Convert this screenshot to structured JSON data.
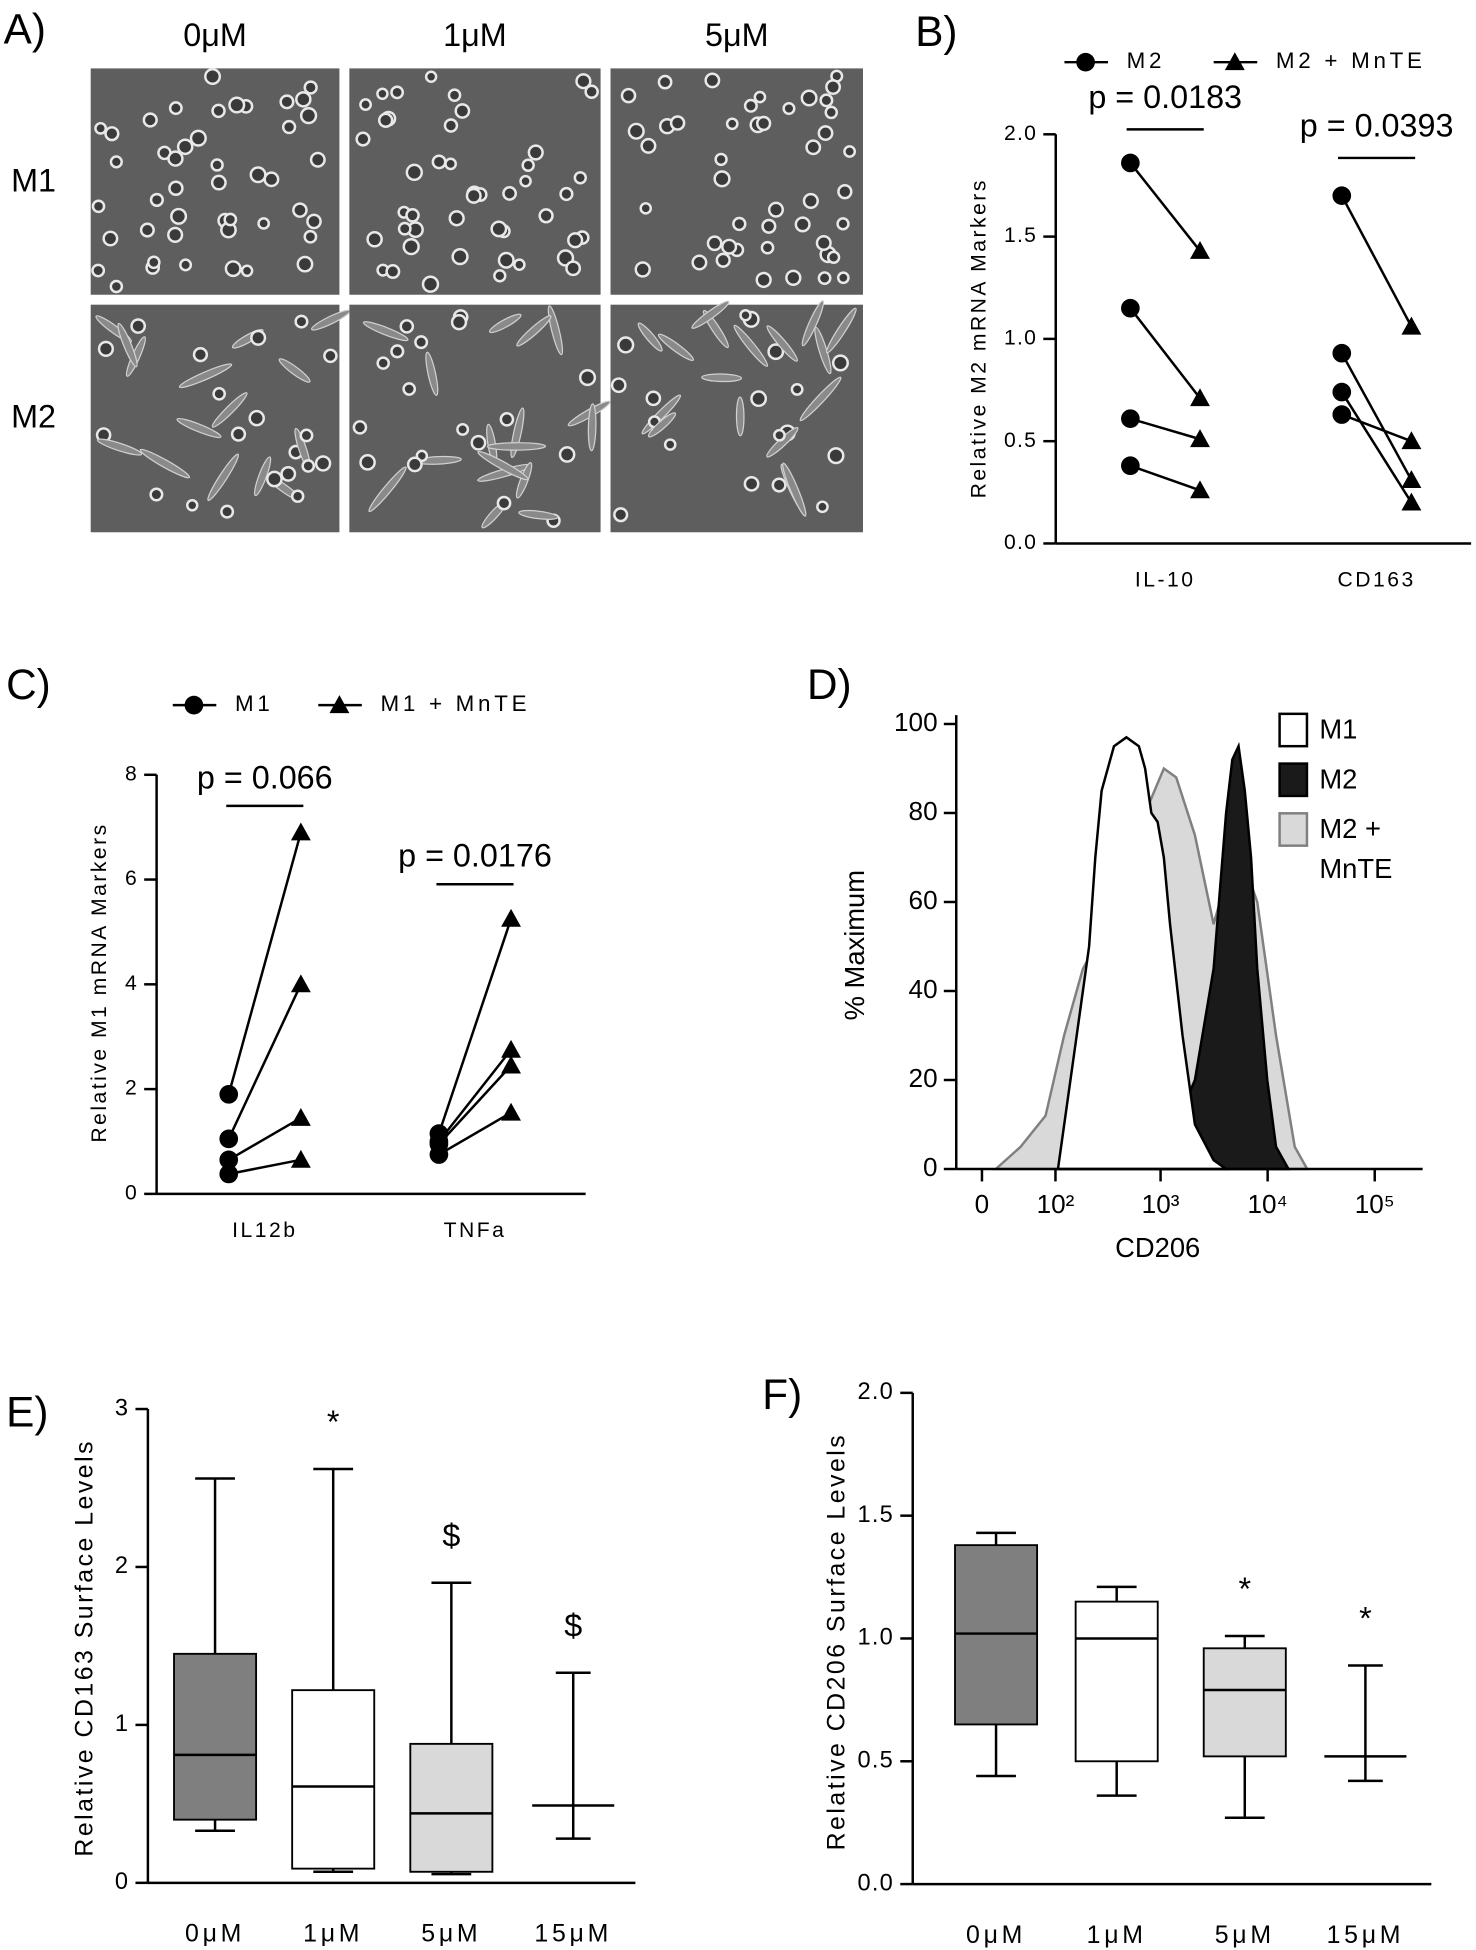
{
  "image_panel": {
    "panel": "A)",
    "columns": [
      "0μM",
      "1μM",
      "5μM"
    ],
    "rows": [
      "M1",
      "M2"
    ]
  },
  "chart_data": [
    {
      "type": "paired",
      "panel": "B)",
      "ylabel": "Relative M2 mRNA Markers",
      "categories": [
        "IL-10",
        "CD163"
      ],
      "series": [
        {
          "name": "M2",
          "marker": "circle",
          "color": "#000000",
          "values": [
            [
              1.86,
              1.15,
              0.61,
              0.38
            ],
            [
              1.7,
              0.93,
              0.74,
              0.63
            ]
          ]
        },
        {
          "name": "M2 + MnTE",
          "marker": "triangle",
          "color": "#000000",
          "values": [
            [
              1.43,
              0.71,
              0.51,
              0.26
            ],
            [
              1.06,
              0.31,
              0.2,
              0.5
            ]
          ]
        }
      ],
      "annotations": [
        "p = 0.0183",
        "p = 0.0393"
      ],
      "ylim": [
        0,
        2
      ],
      "yticks": [
        {
          "value": 0,
          "label": "0.0"
        },
        0.5,
        {
          "value": 1,
          "label": "1.0"
        },
        1.5,
        {
          "value": 2,
          "label": "2.0"
        }
      ]
    },
    {
      "type": "paired",
      "panel": "C)",
      "ylabel": "Relative M1 mRNA Markers",
      "categories": [
        "IL12b",
        "TNFa"
      ],
      "series": [
        {
          "name": "M1",
          "marker": "circle",
          "color": "#000000",
          "values": [
            [
              1.9,
              1.05,
              0.65,
              0.38
            ],
            [
              1.15,
              1.0,
              0.95,
              0.75
            ]
          ]
        },
        {
          "name": "M1 + MnTE",
          "marker": "triangle",
          "color": "#000000",
          "values": [
            [
              6.9,
              4.0,
              1.45,
              0.65
            ],
            [
              5.25,
              2.75,
              2.45,
              1.55
            ]
          ]
        }
      ],
      "annotations": [
        "p = 0.066",
        "p = 0.0176"
      ],
      "ylim": [
        0,
        8
      ],
      "yticks": [
        0,
        2,
        4,
        6,
        8
      ]
    },
    {
      "type": "area",
      "panel": "D)",
      "ylabel": "% Maximum",
      "xlabel": "CD206",
      "xscale": "biexponential",
      "series": [
        {
          "name": "M2 + MnTE",
          "color": "#d9d9d9",
          "stroke": "#808080",
          "x": [
            13,
            40,
            79,
            122,
            186,
            320,
            479,
            717,
            1073,
            1400,
            2094,
            3130,
            4094,
            4680,
            6120,
            8000,
            11980,
            17900,
            23400
          ],
          "values": [
            0,
            5,
            12,
            30,
            45,
            55,
            65,
            80,
            90,
            88,
            75,
            55,
            65,
            68,
            68,
            60,
            30,
            5,
            0
          ]
        },
        {
          "name": "M2",
          "color": "#1a1a1a",
          "stroke": "#000000",
          "x": [
            938,
            1400,
            2094,
            3130,
            4094,
            4680,
            5350,
            6120,
            7000,
            8000,
            9920,
            11980,
            15650
          ],
          "values": [
            0,
            10,
            20,
            45,
            80,
            92,
            95,
            85,
            70,
            45,
            20,
            5,
            0
          ]
        },
        {
          "name": "M1",
          "color": "#ffffff",
          "stroke": "#000000",
          "x": [
            106,
            162,
            213,
            244,
            280,
            366,
            479,
            627,
            717,
            820,
            938,
            1073,
            1226,
            1604,
            2094,
            3130,
            4094
          ],
          "values": [
            0,
            30,
            50,
            70,
            85,
            95,
            97,
            95,
            90,
            80,
            78,
            70,
            55,
            30,
            10,
            2,
            0
          ]
        }
      ],
      "legend": [
        "M1",
        "M2",
        "M2 + MnTE"
      ],
      "xlim": [
        -25,
        280000
      ],
      "xticks": [
        0,
        {
          "value": 100,
          "label": "10²"
        },
        {
          "value": 1000,
          "label": "10³"
        },
        {
          "value": 10000,
          "label": "10⁴"
        },
        {
          "value": 100000,
          "label": "10⁵"
        }
      ],
      "ylim": [
        0,
        102
      ],
      "yticks": [
        0,
        20,
        40,
        60,
        80,
        100
      ]
    },
    {
      "type": "box",
      "panel": "E)",
      "ylabel": "Relative CD163 Surface Levels",
      "categories": [
        "0μM",
        "1μM",
        "5μM",
        "15μM"
      ],
      "min": [
        0.33,
        0.07,
        0.055,
        0.28
      ],
      "q1": [
        0.4,
        0.09,
        0.07,
        null
      ],
      "median": [
        0.81,
        0.61,
        0.44,
        0.49
      ],
      "q3": [
        1.45,
        1.22,
        0.88,
        null
      ],
      "max": [
        2.56,
        2.62,
        1.9,
        1.33
      ],
      "colors": [
        "#7f7f7f",
        "#ffffff",
        "#d9d9d9",
        null
      ],
      "annotations": [
        null,
        "*",
        "$",
        "$"
      ],
      "ylim": [
        0,
        3
      ],
      "yticks": [
        0,
        1,
        2,
        3
      ]
    },
    {
      "type": "box",
      "panel": "F)",
      "ylabel": "Relative CD206 Surface Levels",
      "categories": [
        "0μM",
        "1μM",
        "5μM",
        "15μM"
      ],
      "min": [
        0.44,
        0.36,
        0.27,
        0.42
      ],
      "q1": [
        0.65,
        0.5,
        0.52,
        null
      ],
      "median": [
        1.02,
        1.0,
        0.79,
        0.52
      ],
      "q3": [
        1.38,
        1.15,
        0.96,
        null
      ],
      "max": [
        1.43,
        1.21,
        1.01,
        0.89
      ],
      "colors": [
        "#7f7f7f",
        "#ffffff",
        "#d9d9d9",
        null
      ],
      "annotations": [
        null,
        null,
        "*",
        "*"
      ],
      "ylim": [
        0,
        2
      ],
      "yticks": [
        {
          "value": 0,
          "label": "0.0"
        },
        0.5,
        {
          "value": 1,
          "label": "1.0"
        },
        1.5,
        {
          "value": 2,
          "label": "2.0"
        }
      ]
    }
  ]
}
